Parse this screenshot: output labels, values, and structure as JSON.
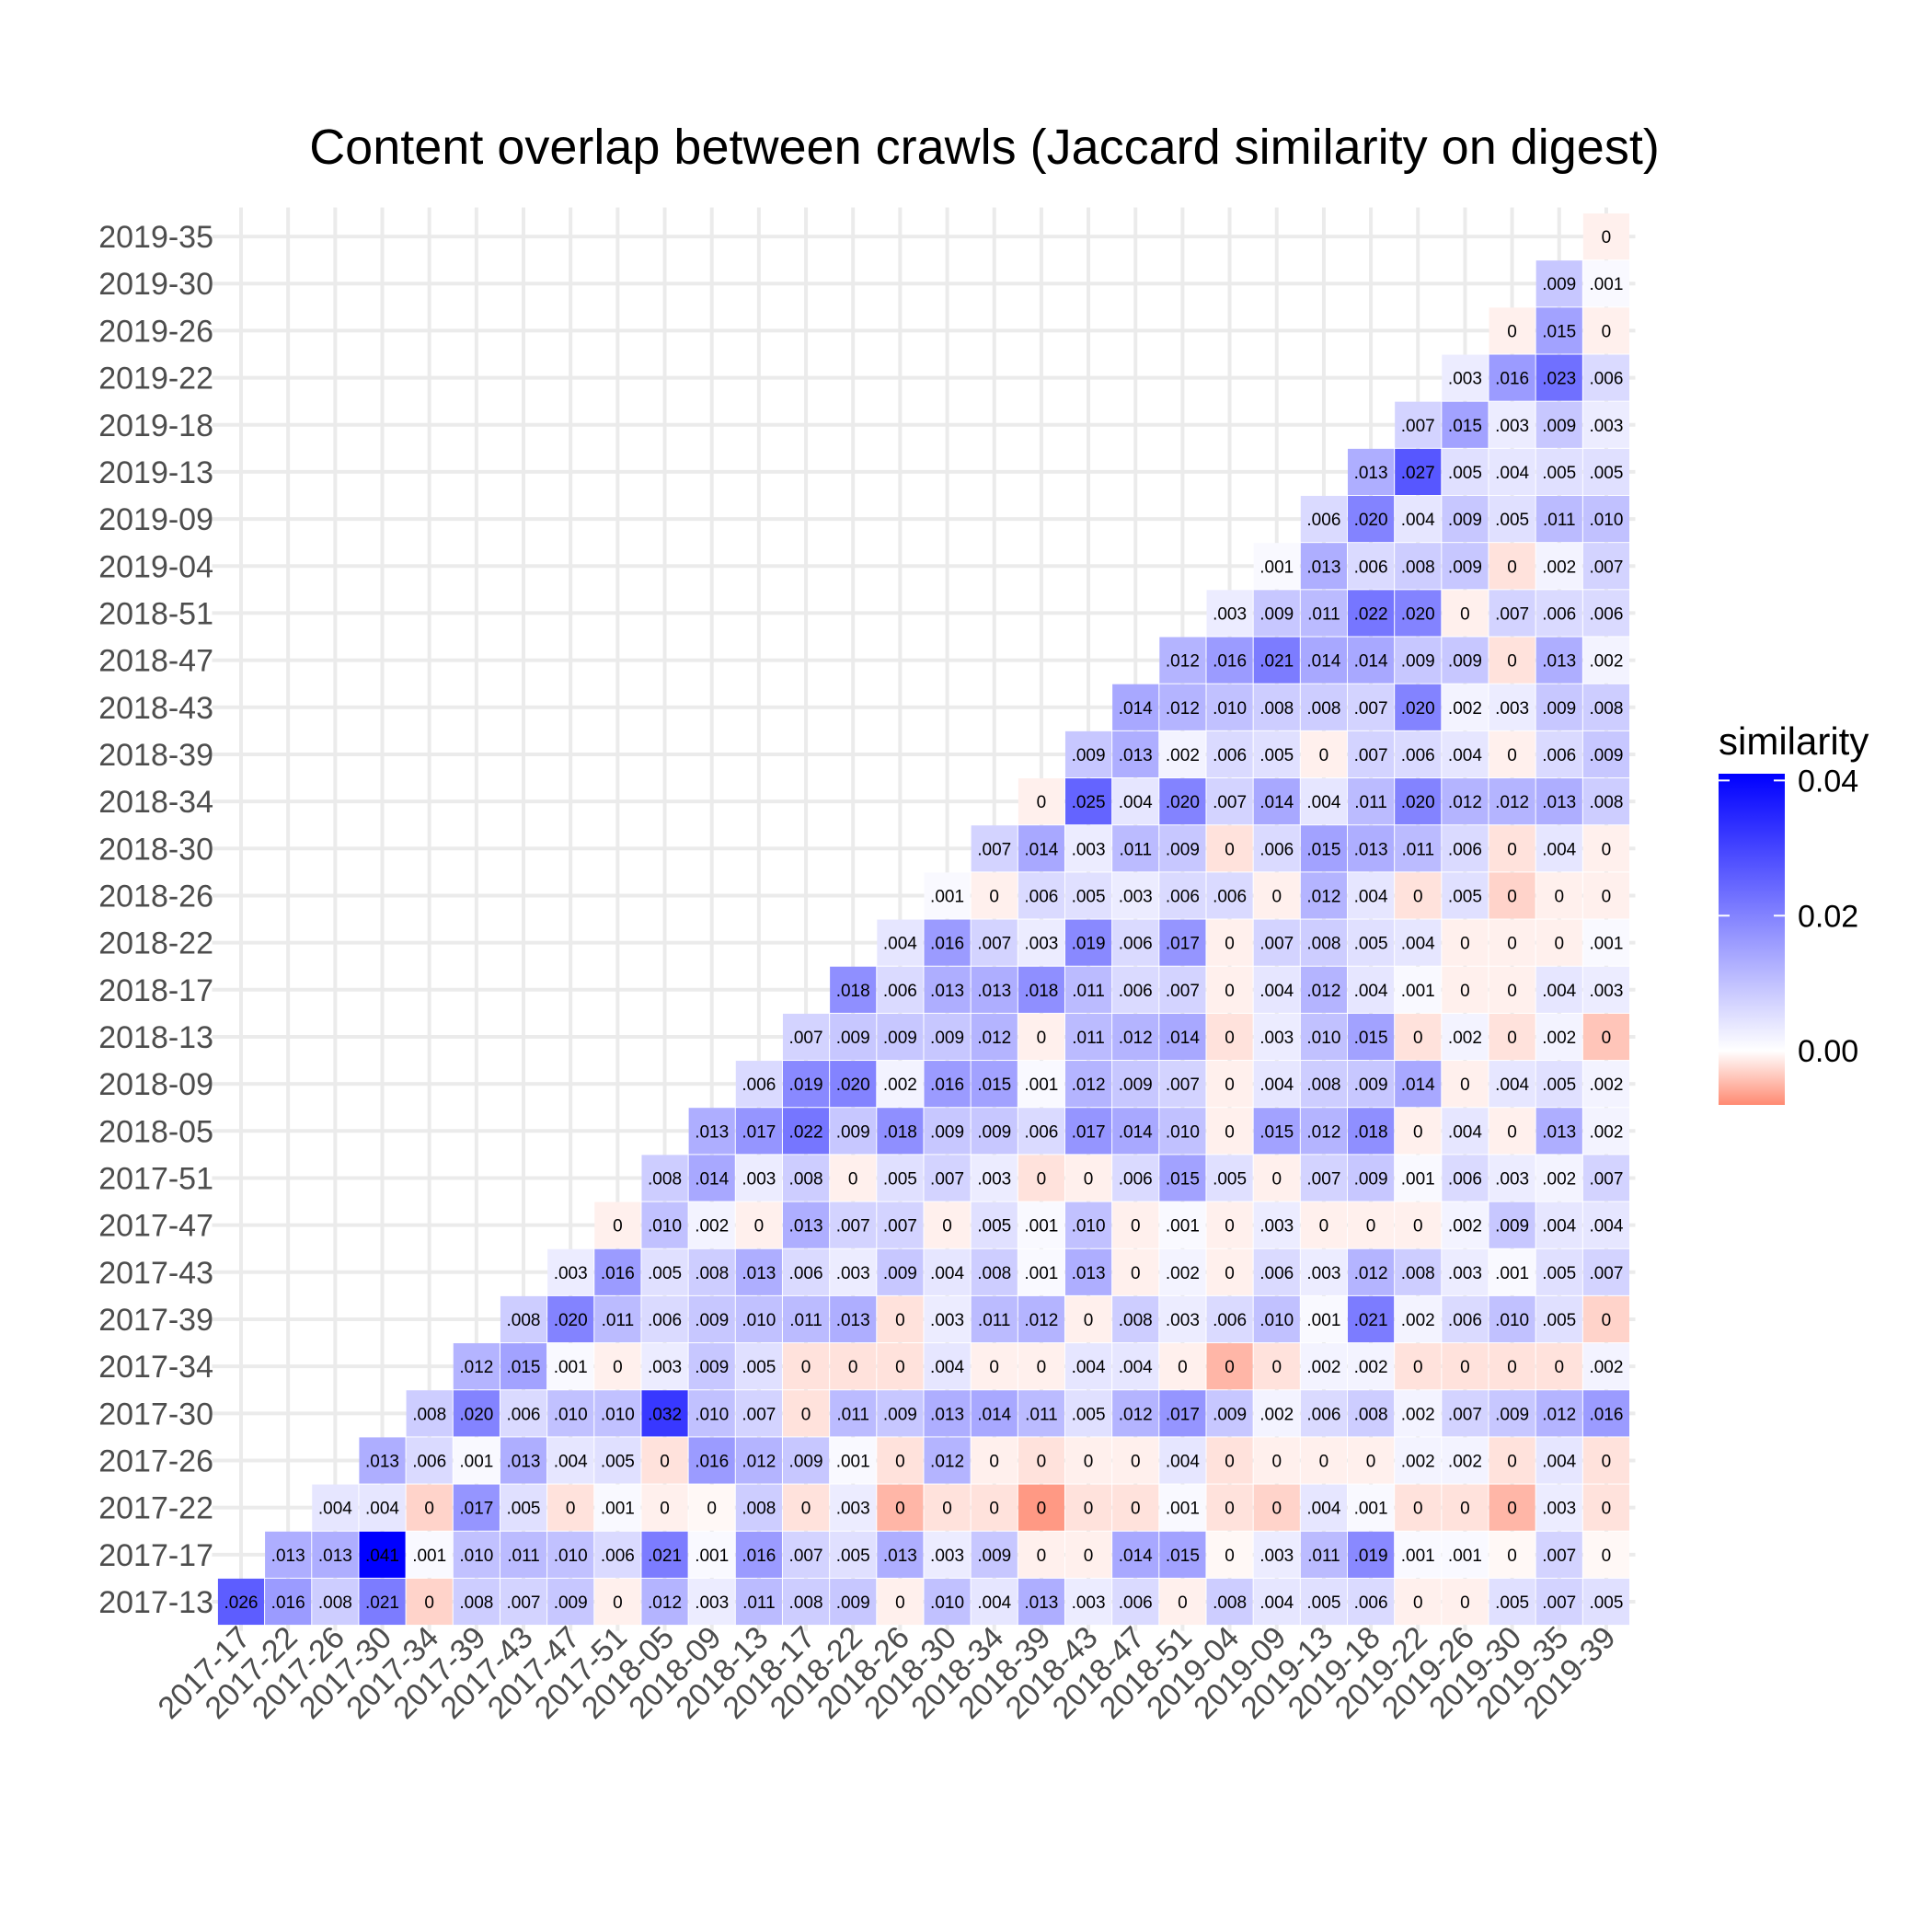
{
  "chart_data": {
    "type": "heatmap",
    "title": "Content overlap between crawls (Jaccard similarity on digest)",
    "x_categories": [
      "2017-17",
      "2017-22",
      "2017-26",
      "2017-30",
      "2017-34",
      "2017-39",
      "2017-43",
      "2017-47",
      "2017-51",
      "2018-05",
      "2018-09",
      "2018-13",
      "2018-17",
      "2018-22",
      "2018-26",
      "2018-30",
      "2018-34",
      "2018-39",
      "2018-43",
      "2018-47",
      "2018-51",
      "2019-04",
      "2019-09",
      "2019-13",
      "2019-18",
      "2019-22",
      "2019-26",
      "2019-30",
      "2019-35",
      "2019-39"
    ],
    "y_categories": [
      "2017-13",
      "2017-17",
      "2017-22",
      "2017-26",
      "2017-30",
      "2017-34",
      "2017-39",
      "2017-43",
      "2017-47",
      "2017-51",
      "2018-05",
      "2018-09",
      "2018-13",
      "2018-17",
      "2018-22",
      "2018-26",
      "2018-30",
      "2018-34",
      "2018-39",
      "2018-43",
      "2018-47",
      "2018-51",
      "2019-04",
      "2019-09",
      "2019-13",
      "2019-18",
      "2019-22",
      "2019-26",
      "2019-30",
      "2019-35"
    ],
    "labels": [
      [
        ".026",
        ".016",
        ".008",
        ".021",
        "0",
        ".008",
        ".007",
        ".009",
        "0",
        ".012",
        ".003",
        ".011",
        ".008",
        ".009",
        "0",
        ".010",
        ".004",
        ".013",
        ".003",
        ".006",
        "0",
        ".008",
        ".004",
        ".005",
        ".006",
        "0",
        "0",
        ".005",
        ".007",
        ".005"
      ],
      [
        ".013",
        ".013",
        ".041",
        ".001",
        ".010",
        ".011",
        ".010",
        ".006",
        ".021",
        ".001",
        ".016",
        ".007",
        ".005",
        ".013",
        ".003",
        ".009",
        "0",
        "0",
        ".014",
        ".015",
        "0",
        ".003",
        ".011",
        ".019",
        ".001",
        ".001",
        "0",
        ".007",
        "0"
      ],
      [
        ".004",
        ".004",
        "0",
        ".017",
        ".005",
        "0",
        ".001",
        "0",
        "0",
        ".008",
        "0",
        ".003",
        "0",
        "0",
        "0",
        "0",
        "0",
        "0",
        ".001",
        "0",
        "0",
        ".004",
        ".001",
        "0",
        "0",
        "0",
        ".003",
        "0"
      ],
      [
        ".013",
        ".006",
        ".001",
        ".013",
        ".004",
        ".005",
        "0",
        ".016",
        ".012",
        ".009",
        ".001",
        "0",
        ".012",
        "0",
        "0",
        "0",
        "0",
        ".004",
        "0",
        "0",
        "0",
        "0",
        ".002",
        ".002",
        "0",
        ".004",
        "0"
      ],
      [
        ".008",
        ".020",
        ".006",
        ".010",
        ".010",
        ".032",
        ".010",
        ".007",
        "0",
        ".011",
        ".009",
        ".013",
        ".014",
        ".011",
        ".005",
        ".012",
        ".017",
        ".009",
        ".002",
        ".006",
        ".008",
        ".002",
        ".007",
        ".009",
        ".012",
        ".016"
      ],
      [
        ".012",
        ".015",
        ".001",
        "0",
        ".003",
        ".009",
        ".005",
        "0",
        "0",
        "0",
        ".004",
        "0",
        "0",
        ".004",
        ".004",
        "0",
        "0",
        "0",
        ".002",
        ".002",
        "0",
        "0",
        "0",
        "0",
        ".002"
      ],
      [
        ".008",
        ".020",
        ".011",
        ".006",
        ".009",
        ".010",
        ".011",
        ".013",
        "0",
        ".003",
        ".011",
        ".012",
        "0",
        ".008",
        ".003",
        ".006",
        ".010",
        ".001",
        ".021",
        ".002",
        ".006",
        ".010",
        ".005",
        "0"
      ],
      [
        ".003",
        ".016",
        ".005",
        ".008",
        ".013",
        ".006",
        ".003",
        ".009",
        ".004",
        ".008",
        ".001",
        ".013",
        "0",
        ".002",
        "0",
        ".006",
        ".003",
        ".012",
        ".008",
        ".003",
        ".001",
        ".005",
        ".007"
      ],
      [
        "0",
        ".010",
        ".002",
        "0",
        ".013",
        ".007",
        ".007",
        "0",
        ".005",
        ".001",
        ".010",
        "0",
        ".001",
        "0",
        ".003",
        "0",
        "0",
        "0",
        ".002",
        ".009",
        ".004",
        ".004"
      ],
      [
        ".008",
        ".014",
        ".003",
        ".008",
        "0",
        ".005",
        ".007",
        ".003",
        "0",
        "0",
        ".006",
        ".015",
        ".005",
        "0",
        ".007",
        ".009",
        ".001",
        ".006",
        ".003",
        ".002",
        ".007"
      ],
      [
        ".013",
        ".017",
        ".022",
        ".009",
        ".018",
        ".009",
        ".009",
        ".006",
        ".017",
        ".014",
        ".010",
        "0",
        ".015",
        ".012",
        ".018",
        "0",
        ".004",
        "0",
        ".013",
        ".002"
      ],
      [
        ".006",
        ".019",
        ".020",
        ".002",
        ".016",
        ".015",
        ".001",
        ".012",
        ".009",
        ".007",
        "0",
        ".004",
        ".008",
        ".009",
        ".014",
        "0",
        ".004",
        ".005",
        ".002"
      ],
      [
        ".007",
        ".009",
        ".009",
        ".009",
        ".012",
        "0",
        ".011",
        ".012",
        ".014",
        "0",
        ".003",
        ".010",
        ".015",
        "0",
        ".002",
        "0",
        ".002",
        "0"
      ],
      [
        ".018",
        ".006",
        ".013",
        ".013",
        ".018",
        ".011",
        ".006",
        ".007",
        "0",
        ".004",
        ".012",
        ".004",
        ".001",
        "0",
        "0",
        ".004",
        ".003"
      ],
      [
        ".004",
        ".016",
        ".007",
        ".003",
        ".019",
        ".006",
        ".017",
        "0",
        ".007",
        ".008",
        ".005",
        ".004",
        "0",
        "0",
        "0",
        ".001"
      ],
      [
        ".001",
        "0",
        ".006",
        ".005",
        ".003",
        ".006",
        ".006",
        "0",
        ".012",
        ".004",
        "0",
        ".005",
        "0",
        "0",
        "0"
      ],
      [
        ".007",
        ".014",
        ".003",
        ".011",
        ".009",
        "0",
        ".006",
        ".015",
        ".013",
        ".011",
        ".006",
        "0",
        ".004",
        "0"
      ],
      [
        "0",
        ".025",
        ".004",
        ".020",
        ".007",
        ".014",
        ".004",
        ".011",
        ".020",
        ".012",
        ".012",
        ".013",
        ".008"
      ],
      [
        ".009",
        ".013",
        ".002",
        ".006",
        ".005",
        "0",
        ".007",
        ".006",
        ".004",
        "0",
        ".006",
        ".009"
      ],
      [
        ".014",
        ".012",
        ".010",
        ".008",
        ".008",
        ".007",
        ".020",
        ".002",
        ".003",
        ".009",
        ".008"
      ],
      [
        ".012",
        ".016",
        ".021",
        ".014",
        ".014",
        ".009",
        ".009",
        "0",
        ".013",
        ".002"
      ],
      [
        ".003",
        ".009",
        ".011",
        ".022",
        ".020",
        "0",
        ".007",
        ".006",
        ".006"
      ],
      [
        ".001",
        ".013",
        ".006",
        ".008",
        ".009",
        "0",
        ".002",
        ".007"
      ],
      [
        ".006",
        ".020",
        ".004",
        ".009",
        ".005",
        ".011",
        ".010"
      ],
      [
        ".013",
        ".027",
        ".005",
        ".004",
        ".005",
        ".005"
      ],
      [
        ".007",
        ".015",
        ".003",
        ".009",
        ".003"
      ],
      [
        ".003",
        ".016",
        ".023",
        ".006"
      ],
      [
        "0",
        ".015",
        "0"
      ],
      [
        ".009",
        ".001"
      ],
      [
        "0"
      ]
    ],
    "raw_values": [
      [
        0.026,
        0.016,
        0.008,
        0.021,
        -0.003,
        0.008,
        0.007,
        0.009,
        -0.001,
        0.012,
        0.003,
        0.011,
        0.008,
        0.009,
        -0.001,
        0.01,
        0.004,
        0.013,
        0.003,
        0.006,
        -0.001,
        0.008,
        0.004,
        0.005,
        0.006,
        -0.001,
        -0.001,
        0.005,
        0.007,
        0.005
      ],
      [
        0.013,
        0.013,
        0.041,
        0.001,
        0.01,
        0.011,
        0.01,
        0.006,
        0.021,
        0.001,
        0.016,
        0.007,
        0.005,
        0.013,
        0.003,
        0.009,
        -0.001,
        -0.001,
        0.014,
        0.015,
        -0.0005,
        0.003,
        0.011,
        0.019,
        0.001,
        0.001,
        -0.0005,
        0.007,
        -0.0005
      ],
      [
        0.004,
        0.004,
        -0.003,
        0.017,
        0.005,
        -0.002,
        0.001,
        -0.001,
        -0.0005,
        0.008,
        -0.002,
        0.003,
        -0.005,
        -0.002,
        -0.002,
        -0.007,
        -0.002,
        -0.002,
        0.001,
        -0.002,
        -0.003,
        0.004,
        0.001,
        -0.002,
        -0.002,
        -0.005,
        0.003,
        -0.002
      ],
      [
        0.013,
        0.006,
        0.001,
        0.013,
        0.004,
        0.005,
        -0.002,
        0.016,
        0.012,
        0.009,
        0.001,
        -0.002,
        0.012,
        -0.001,
        -0.002,
        -0.001,
        -0.001,
        0.004,
        -0.002,
        -0.001,
        -0.001,
        -0.001,
        0.002,
        0.002,
        -0.002,
        0.004,
        -0.002
      ],
      [
        0.008,
        0.02,
        0.006,
        0.01,
        0.01,
        0.032,
        0.01,
        0.007,
        -0.002,
        0.011,
        0.009,
        0.013,
        0.014,
        0.011,
        0.005,
        0.012,
        0.017,
        0.009,
        0.002,
        0.006,
        0.008,
        0.002,
        0.007,
        0.009,
        0.012,
        0.016
      ],
      [
        0.012,
        0.015,
        0.001,
        -0.001,
        0.003,
        0.009,
        0.005,
        -0.002,
        -0.002,
        -0.002,
        0.004,
        -0.001,
        -0.001,
        0.004,
        0.004,
        -0.001,
        -0.005,
        -0.002,
        0.002,
        0.002,
        -0.002,
        -0.002,
        -0.002,
        -0.002,
        0.002
      ],
      [
        0.008,
        0.02,
        0.011,
        0.006,
        0.009,
        0.01,
        0.011,
        0.013,
        -0.002,
        0.003,
        0.011,
        0.012,
        -0.001,
        0.008,
        0.003,
        0.006,
        0.01,
        0.001,
        0.021,
        0.002,
        0.006,
        0.01,
        0.005,
        -0.003
      ],
      [
        0.003,
        0.016,
        0.005,
        0.008,
        0.013,
        0.006,
        0.003,
        0.009,
        0.004,
        0.008,
        0.001,
        0.013,
        -0.001,
        0.002,
        -0.001,
        0.006,
        0.003,
        0.012,
        0.008,
        0.003,
        0.001,
        0.005,
        0.007
      ],
      [
        -0.001,
        0.01,
        0.002,
        -0.001,
        0.013,
        0.007,
        0.007,
        -0.001,
        0.005,
        0.001,
        0.01,
        -0.001,
        0.001,
        -0.001,
        0.003,
        -0.001,
        -0.001,
        -0.001,
        0.002,
        0.009,
        0.004,
        0.004
      ],
      [
        0.008,
        0.014,
        0.003,
        0.008,
        -0.001,
        0.005,
        0.007,
        0.003,
        -0.002,
        -0.001,
        0.006,
        0.015,
        0.005,
        -0.001,
        0.007,
        0.009,
        0.001,
        0.006,
        0.003,
        0.002,
        0.007
      ],
      [
        0.013,
        0.017,
        0.022,
        0.009,
        0.018,
        0.009,
        0.009,
        0.006,
        0.017,
        0.014,
        0.01,
        -0.001,
        0.015,
        0.012,
        0.018,
        -0.001,
        0.004,
        -0.001,
        0.013,
        0.002
      ],
      [
        0.006,
        0.019,
        0.02,
        0.002,
        0.016,
        0.015,
        0.001,
        0.012,
        0.009,
        0.007,
        -0.001,
        0.004,
        0.008,
        0.009,
        0.014,
        -0.001,
        0.004,
        0.005,
        0.002
      ],
      [
        0.007,
        0.009,
        0.009,
        0.009,
        0.012,
        -0.001,
        0.011,
        0.012,
        0.014,
        -0.002,
        0.003,
        0.01,
        0.015,
        -0.002,
        0.002,
        -0.002,
        0.002,
        -0.004
      ],
      [
        0.018,
        0.006,
        0.013,
        0.013,
        0.018,
        0.011,
        0.006,
        0.007,
        -0.001,
        0.004,
        0.012,
        0.004,
        0.001,
        -0.001,
        -0.001,
        0.004,
        0.003
      ],
      [
        0.004,
        0.016,
        0.007,
        0.003,
        0.019,
        0.006,
        0.017,
        -0.001,
        0.007,
        0.008,
        0.005,
        0.004,
        -0.001,
        -0.001,
        -0.001,
        0.001
      ],
      [
        0.001,
        -0.001,
        0.006,
        0.005,
        0.003,
        0.006,
        0.006,
        -0.001,
        0.012,
        0.004,
        -0.002,
        0.005,
        -0.003,
        -0.001,
        -0.001
      ],
      [
        0.007,
        0.014,
        0.003,
        0.011,
        0.009,
        -0.002,
        0.006,
        0.015,
        0.013,
        0.011,
        0.006,
        -0.002,
        0.004,
        -0.001
      ],
      [
        -0.001,
        0.025,
        0.004,
        0.02,
        0.007,
        0.014,
        0.004,
        0.011,
        0.02,
        0.012,
        0.012,
        0.013,
        0.008
      ],
      [
        0.009,
        0.013,
        0.002,
        0.006,
        0.005,
        -0.001,
        0.007,
        0.006,
        0.004,
        -0.001,
        0.006,
        0.009
      ],
      [
        0.014,
        0.012,
        0.01,
        0.008,
        0.008,
        0.007,
        0.02,
        0.002,
        0.003,
        0.009,
        0.008
      ],
      [
        0.012,
        0.016,
        0.021,
        0.014,
        0.014,
        0.009,
        0.009,
        -0.002,
        0.013,
        0.002
      ],
      [
        0.003,
        0.009,
        0.011,
        0.022,
        0.02,
        -0.001,
        0.007,
        0.006,
        0.006
      ],
      [
        0.001,
        0.013,
        0.006,
        0.008,
        0.009,
        -0.002,
        0.002,
        0.007
      ],
      [
        0.006,
        0.02,
        0.004,
        0.009,
        0.005,
        0.011,
        0.01
      ],
      [
        0.013,
        0.027,
        0.005,
        0.004,
        0.005,
        0.005
      ],
      [
        0.007,
        0.015,
        0.003,
        0.009,
        0.003
      ],
      [
        0.003,
        0.016,
        0.023,
        0.006
      ],
      [
        -0.001,
        0.015,
        -0.001
      ],
      [
        0.009,
        0.001
      ],
      [
        -0.001
      ]
    ],
    "legend": {
      "title": "similarity",
      "ticks": [
        0.04,
        0.02,
        0.0
      ],
      "tick_labels": [
        "0.04",
        "0.02",
        "0.00"
      ],
      "range": [
        -0.008,
        0.041
      ],
      "low_color": "#ff8a72",
      "mid_color": "#ffffff",
      "high_color": "#0000ff",
      "placement": "right"
    },
    "grid": true
  }
}
